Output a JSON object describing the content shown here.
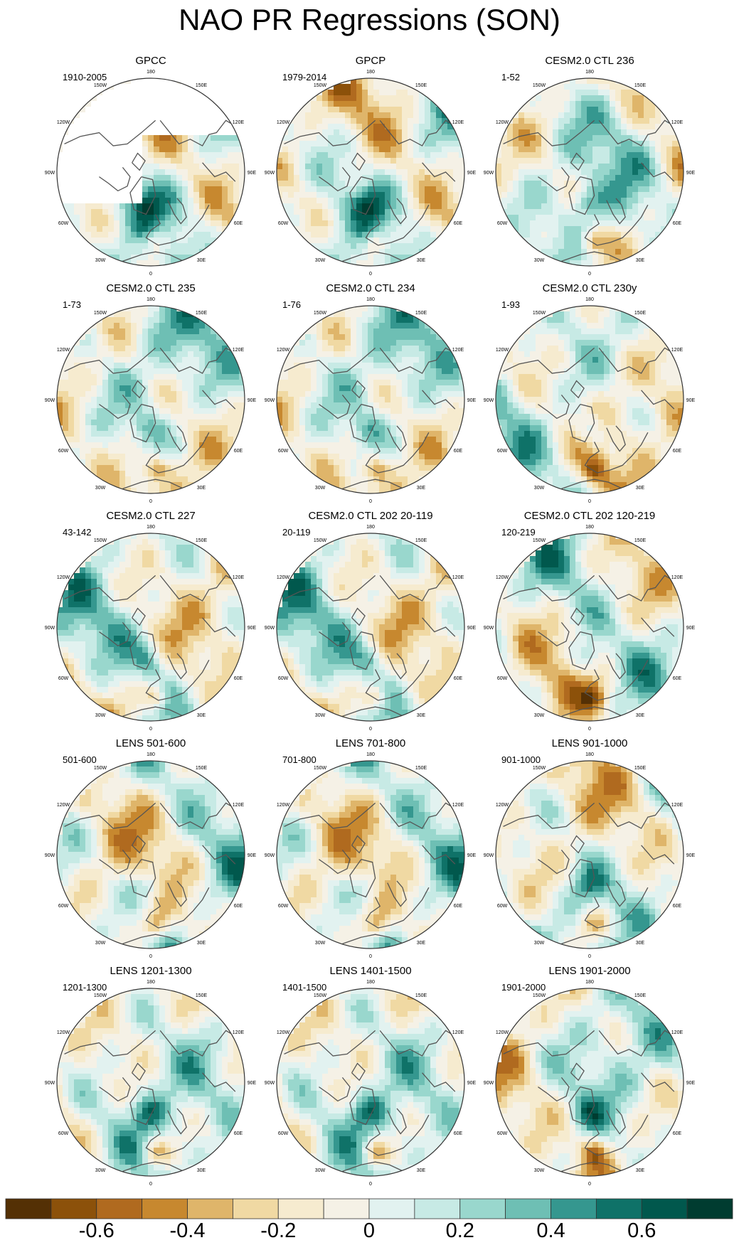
{
  "title": "NAO PR Regressions (SON)",
  "chart_data": {
    "type": "map",
    "projection": "polar-stereographic (Northern Hemisphere)",
    "variable": "PR regression on NAO",
    "season": "SON",
    "longitude_labels": [
      "180",
      "150E",
      "120E",
      "90E",
      "60E",
      "30E",
      "0",
      "30W",
      "60W",
      "90W",
      "120W",
      "150W"
    ],
    "panels": [
      {
        "title": "GPCC",
        "period": "1910-2005",
        "pattern": "gpcc"
      },
      {
        "title": "GPCP",
        "period": "1979-2014",
        "pattern": "a"
      },
      {
        "title": "CESM2.0 CTL 236",
        "period": "1-52",
        "pattern": "b"
      },
      {
        "title": "CESM2.0 CTL 235",
        "period": "1-73",
        "pattern": "c"
      },
      {
        "title": "CESM2.0 CTL 234",
        "period": "1-76",
        "pattern": "a"
      },
      {
        "title": "CESM2.0 CTL 230y",
        "period": "1-93",
        "pattern": "b"
      },
      {
        "title": "CESM2.0 CTL 227",
        "period": "43-142",
        "pattern": "c"
      },
      {
        "title": "CESM2.0 CTL 202 20-119",
        "period": "20-119",
        "pattern": "a"
      },
      {
        "title": "CESM2.0 CTL 202 120-219",
        "period": "120-219",
        "pattern": "b"
      },
      {
        "title": "LENS 501-600",
        "period": "501-600",
        "pattern": "c"
      },
      {
        "title": "LENS 701-800",
        "period": "701-800",
        "pattern": "a"
      },
      {
        "title": "LENS 901-1000",
        "period": "901-1000",
        "pattern": "b"
      },
      {
        "title": "LENS 1201-1300",
        "period": "1201-1300",
        "pattern": "c"
      },
      {
        "title": "LENS 1401-1500",
        "period": "1401-1500",
        "pattern": "a"
      },
      {
        "title": "LENS 1901-2000",
        "period": "1901-2000",
        "pattern": "b"
      }
    ],
    "colorbar": {
      "levels": [
        -0.7,
        -0.6,
        -0.5,
        -0.4,
        -0.3,
        -0.2,
        -0.1,
        0,
        0.1,
        0.2,
        0.3,
        0.4,
        0.5,
        0.6,
        0.7
      ],
      "tick_labels": [
        "-0.6",
        "-0.4",
        "-0.2",
        "0",
        "0.2",
        "0.4",
        "0.6"
      ],
      "tick_values": [
        -0.6,
        -0.4,
        -0.2,
        0,
        0.2,
        0.4,
        0.6
      ],
      "colors": [
        "#543005",
        "#8c510a",
        "#b06a1f",
        "#c7882f",
        "#dfb56a",
        "#f0d9a3",
        "#f6ebcf",
        "#f5f1e6",
        "#e2f2f0",
        "#c7eae5",
        "#99d7cd",
        "#6ebfb4",
        "#35978f",
        "#0f7268",
        "#01584d",
        "#003c30"
      ]
    }
  }
}
